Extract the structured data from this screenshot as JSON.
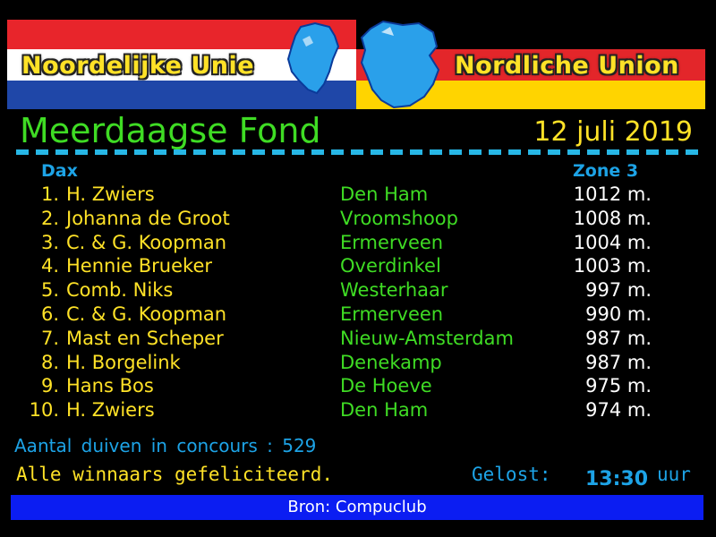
{
  "banner": {
    "left_title": "Noordelijke Unie",
    "right_title": "Nordliche Union"
  },
  "title": "Meerdaagse Fond",
  "date": "12 juli 2019",
  "columns": {
    "left": "Dax",
    "right": "Zone 3"
  },
  "results": [
    {
      "rank": "1.",
      "name": "H. Zwiers",
      "place": "Den Ham",
      "speed": "1012 m."
    },
    {
      "rank": "2.",
      "name": "Johanna de Groot",
      "place": "Vroomshoop",
      "speed": "1008 m."
    },
    {
      "rank": "3.",
      "name": "C. & G. Koopman",
      "place": "Ermerveen",
      "speed": "1004 m."
    },
    {
      "rank": "4.",
      "name": "Hennie Brueker",
      "place": "Overdinkel",
      "speed": "1003 m."
    },
    {
      "rank": "5.",
      "name": "Comb. Niks",
      "place": "Westerhaar",
      "speed": "997 m."
    },
    {
      "rank": "6.",
      "name": "C. & G. Koopman",
      "place": "Ermerveen",
      "speed": "990 m."
    },
    {
      "rank": "7.",
      "name": "Mast en Scheper",
      "place": "Nieuw-Amsterdam",
      "speed": "987 m."
    },
    {
      "rank": "8.",
      "name": "H. Borgelink",
      "place": "Denekamp",
      "speed": "987 m."
    },
    {
      "rank": "9.",
      "name": "Hans Bos",
      "place": "De Hoeve",
      "speed": "975 m."
    },
    {
      "rank": "10.",
      "name": "H. Zwiers",
      "place": "Den Ham",
      "speed": "974 m."
    }
  ],
  "count_text": "Aantal duiven in concours : 529",
  "congrats": "Alle winnaars gefeliciteerd.",
  "gelost": {
    "label": "Gelost:",
    "time": "13:30",
    "unit": "uur"
  },
  "footer": "Bron: Compuclub",
  "colors": {
    "title_green": "#3fdc24",
    "yellow": "#ffe227",
    "blue_text": "#1da3e6",
    "footer_blue": "#0b1df2"
  }
}
